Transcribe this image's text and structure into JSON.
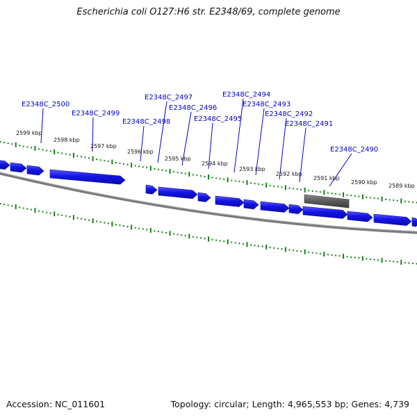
{
  "title": "Escherichia coli O127:H6 str. E2348/69, complete genome",
  "footer": {
    "accession": "Accession: NC_011601",
    "stats": "Topology: circular; Length: 4,965,553 bp; Genes: 4,739"
  },
  "colors": {
    "gene_forward": "#1a1aee",
    "gene_forward_highlight": "#4a4aff",
    "gene_other": "#555555",
    "backbone": "#808080",
    "scale_ticks": "#108010",
    "label_text": "#0000cc",
    "leader_line": "#0000cc"
  },
  "icons": {
    "gene_feature": "arrow-glyph"
  },
  "scale": {
    "unit": "kbp",
    "labels": [
      "2599 kbp",
      "2598 kbp",
      "2597 kbp",
      "2596 kbp",
      "2595 kbp",
      "2594 kbp",
      "2593 kbp",
      "2592 kbp",
      "2591 kbp",
      "2590 kbp",
      "2589 kbp"
    ]
  },
  "genes": {
    "labels": [
      "E2348C_2500",
      "E2348C_2499",
      "E2348C_2498",
      "E2348C_2497",
      "E2348C_2496",
      "E2348C_2495",
      "E2348C_2494",
      "E2348C_2493",
      "E2348C_2492",
      "E2348C_2491",
      "E2348C_2490"
    ]
  }
}
